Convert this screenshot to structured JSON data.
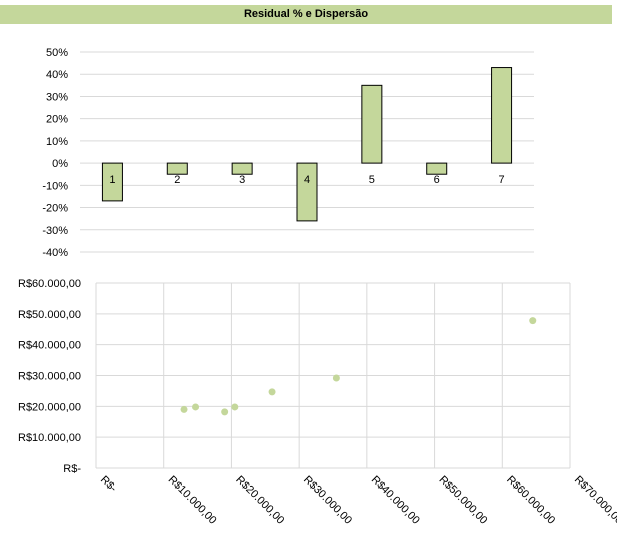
{
  "header": {
    "title": "Residual % e Dispersão"
  },
  "colors": {
    "bar_fill": "#c4d79b",
    "bar_stroke": "#000000",
    "point_fill": "#c4d79b",
    "grid": "#d9d9d9",
    "title_bg": "#c4d79b"
  },
  "chart_data": [
    {
      "type": "bar",
      "title": "Residual % e Dispersão",
      "categories": [
        "1",
        "2",
        "3",
        "4",
        "5",
        "6",
        "7"
      ],
      "values": [
        -17,
        -5,
        -5,
        -26,
        35,
        -5,
        43
      ],
      "unit": "%",
      "ylim": [
        -40,
        50
      ],
      "yticks": [
        "50%",
        "40%",
        "30%",
        "20%",
        "10%",
        "0%",
        "-10%",
        "-20%",
        "-30%",
        "-40%"
      ],
      "grid": true,
      "data_labels": true
    },
    {
      "type": "scatter",
      "points": [
        {
          "x": 13000,
          "y": 19000
        },
        {
          "x": 14700,
          "y": 19800
        },
        {
          "x": 19000,
          "y": 18200
        },
        {
          "x": 20500,
          "y": 19800
        },
        {
          "x": 26000,
          "y": 24700
        },
        {
          "x": 35500,
          "y": 29200
        },
        {
          "x": 64500,
          "y": 47800
        }
      ],
      "xlim": [
        0,
        70000
      ],
      "ylim": [
        0,
        60000
      ],
      "xticks": [
        "R$-",
        "R$10.000,00",
        "R$20.000,00",
        "R$30.000,00",
        "R$40.000,00",
        "R$50.000,00",
        "R$60.000,00",
        "R$70.000,00"
      ],
      "yticks": [
        "R$60.000,00",
        "R$50.000,00",
        "R$40.000,00",
        "R$30.000,00",
        "R$20.000,00",
        "R$10.000,00",
        "R$-"
      ],
      "grid": true
    }
  ]
}
